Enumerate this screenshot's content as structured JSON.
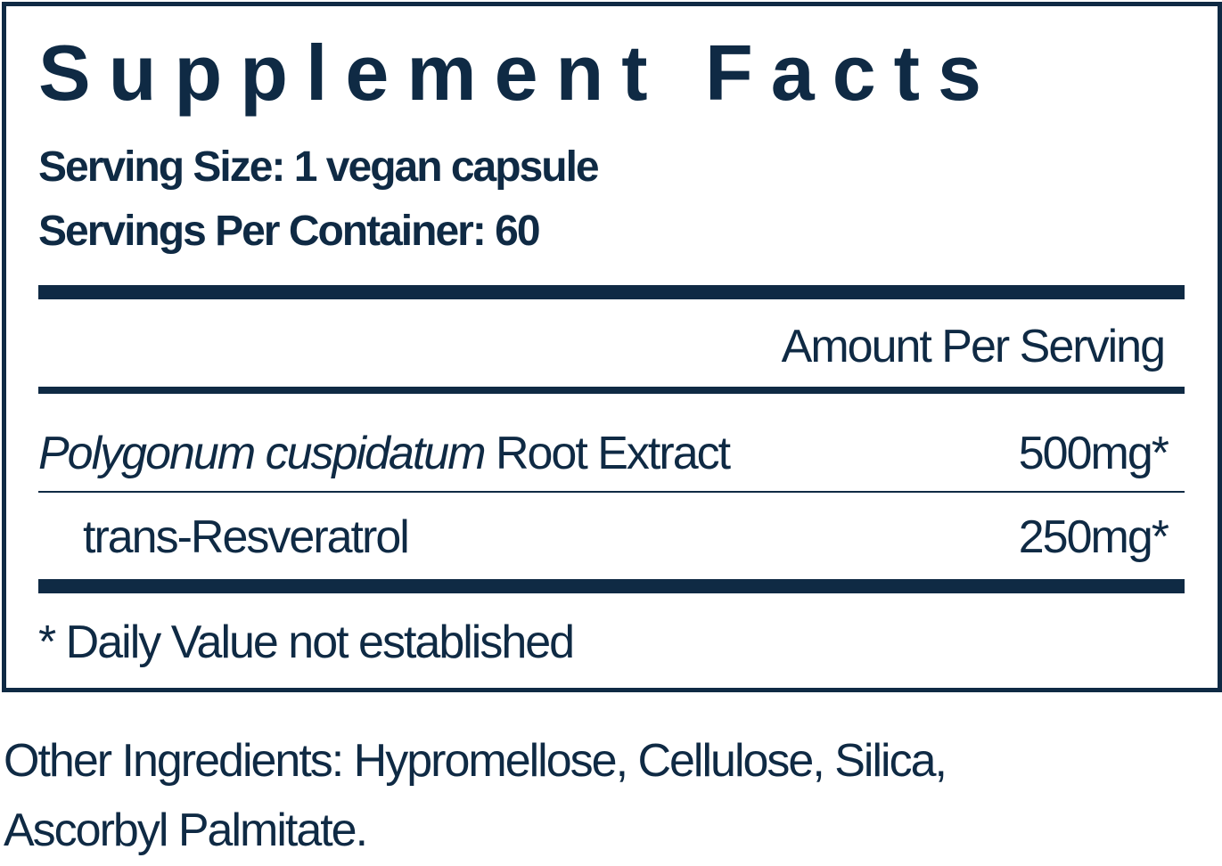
{
  "label": {
    "title": "Supplement Facts",
    "serving_size": "Serving Size: 1 vegan capsule",
    "servings_per_container": "Servings Per Container: 60",
    "amount_header": "Amount Per Serving",
    "ingredients": [
      {
        "name_italic": "Polygonum cuspidatum",
        "name_rest": " Root Extract",
        "amount": "500mg*"
      },
      {
        "name": "trans-Resveratrol",
        "amount": "250mg*"
      }
    ],
    "footnote": "* Daily Value not established"
  },
  "other_ingredients": "Other Ingredients: Hypromellose, Cellulose, Silica, Ascorbyl Palmitate.",
  "colors": {
    "ink": "#0f2a44",
    "background": "#ffffff"
  }
}
